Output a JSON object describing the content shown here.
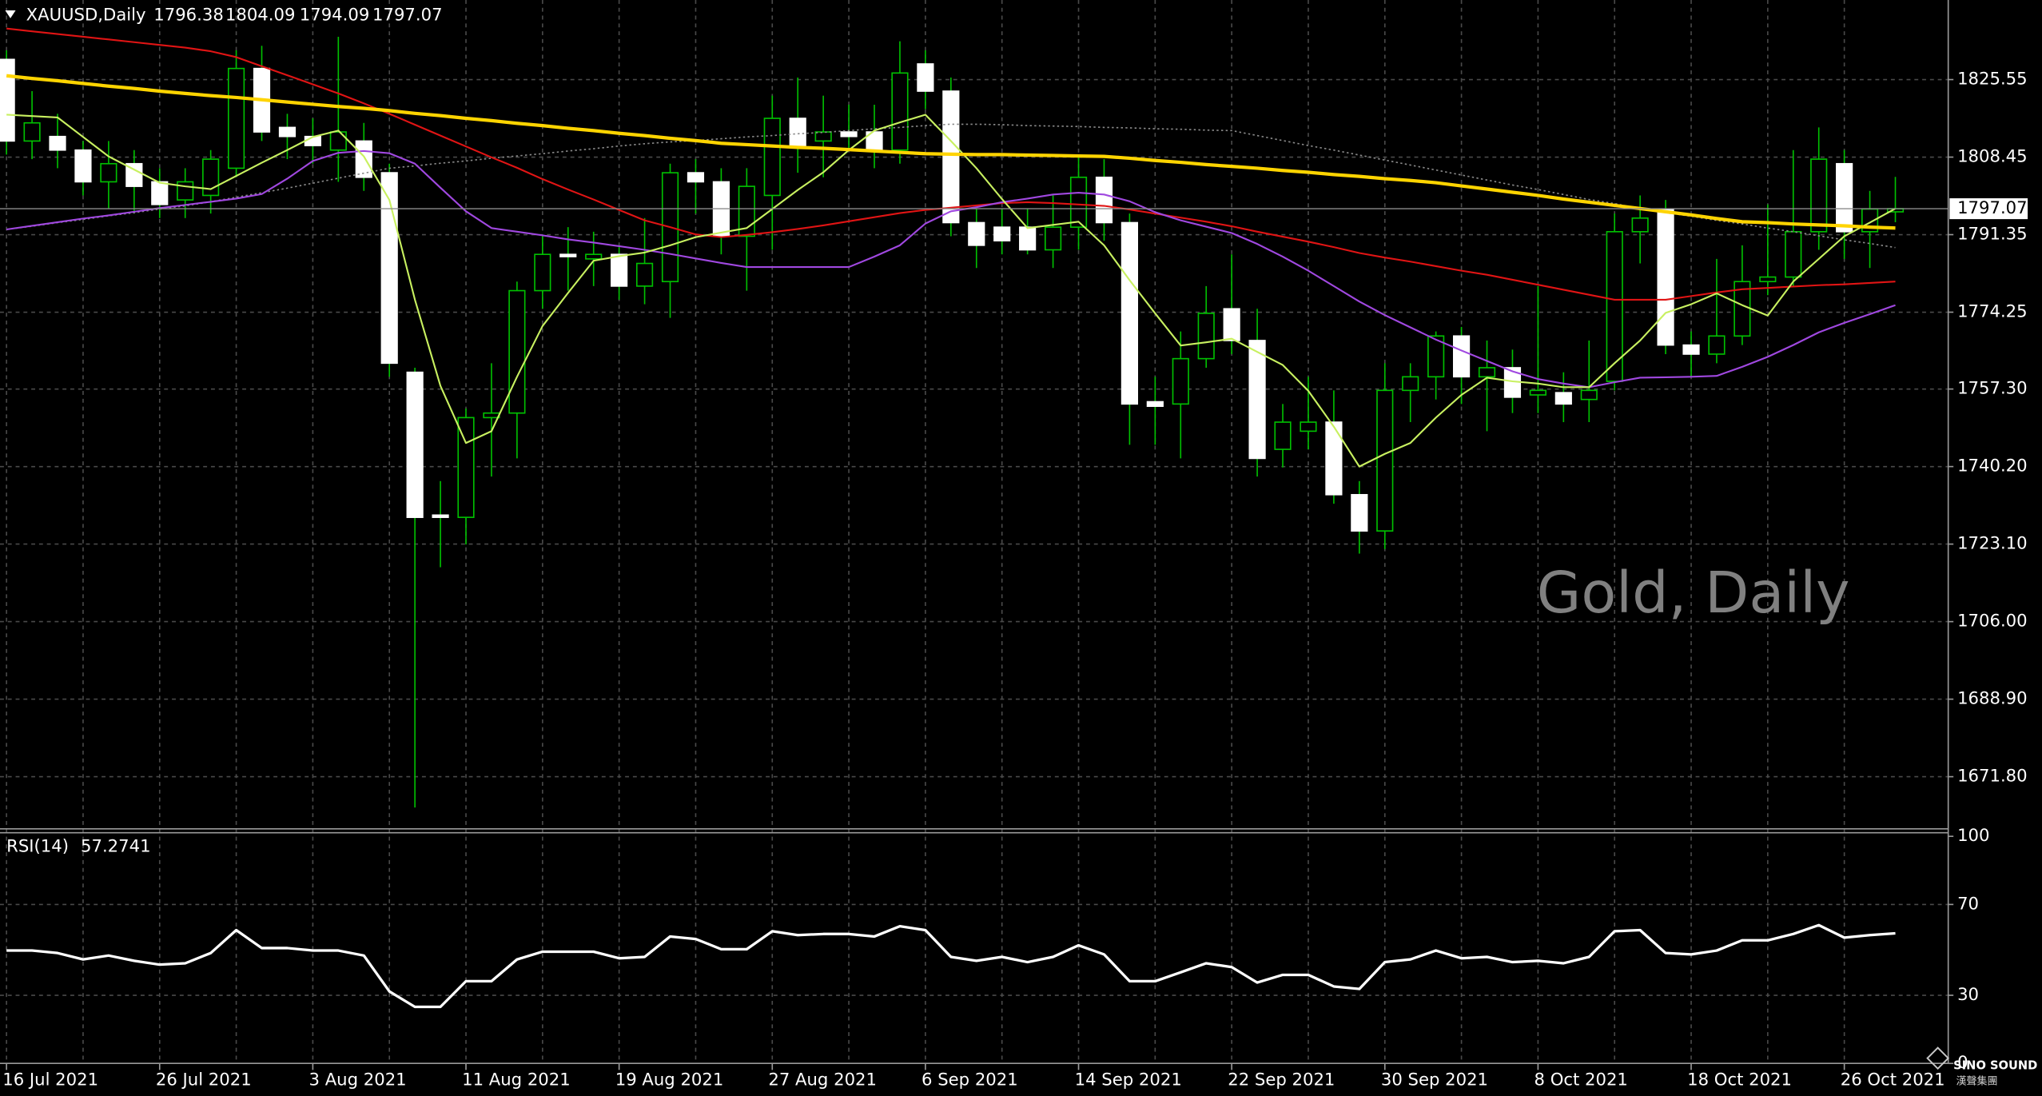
{
  "chart_data": {
    "type": "candlestick",
    "title": "XAUUSD,Daily",
    "watermark": "Gold, Daily",
    "categories": [
      "16 Jul 2021",
      null,
      null,
      null,
      null,
      null,
      "26 Jul 2021",
      null,
      null,
      null,
      null,
      null,
      "3 Aug 2021",
      null,
      null,
      null,
      null,
      null,
      "11 Aug 2021",
      null,
      null,
      null,
      null,
      null,
      "19 Aug 2021",
      null,
      null,
      null,
      null,
      null,
      "27 Aug 2021",
      null,
      null,
      null,
      null,
      null,
      "6 Sep 2021",
      null,
      null,
      null,
      null,
      null,
      "14 Sep 2021",
      null,
      null,
      null,
      null,
      null,
      "22 Sep 2021",
      null,
      null,
      null,
      null,
      null,
      "30 Sep 2021",
      null,
      null,
      null,
      null,
      null,
      "8 Oct 2021",
      null,
      null,
      null,
      null,
      null,
      "18 Oct 2021",
      null,
      null,
      null,
      null,
      null,
      "26 Oct 2021",
      null,
      null
    ],
    "open": [
      1830,
      1812,
      1813,
      1810,
      1803,
      1807,
      1803,
      1799,
      1800,
      1806,
      1828,
      1815,
      1813,
      1810,
      1812,
      1805,
      1761,
      1729.5,
      1729,
      1751,
      1752,
      1779,
      1787,
      1786,
      1787,
      1780,
      1781,
      1805,
      1803,
      1791,
      1800,
      1817,
      1812,
      1814,
      1814,
      1810,
      1829,
      1823,
      1794,
      1793,
      1793,
      1788,
      1793,
      1804,
      1794,
      1754.5,
      1754,
      1764,
      1775,
      1768,
      1744,
      1748,
      1750,
      1734,
      1726,
      1757,
      1760,
      1769,
      1760,
      1762,
      1756,
      1756.5,
      1755,
      1759,
      1792,
      1797,
      1767,
      1765,
      1769,
      1781,
      1782,
      1792,
      1807,
      1792,
      1796.38
    ],
    "high": [
      1832,
      1823,
      1818,
      1812,
      1812,
      1810,
      1806,
      1806,
      1810,
      1832,
      1833,
      1818,
      1817,
      1835,
      1816,
      1807,
      1762,
      1737,
      1753,
      1763,
      1781,
      1791,
      1793,
      1792,
      1789,
      1795,
      1807,
      1808,
      1806,
      1806,
      1822,
      1826,
      1822,
      1820,
      1820,
      1834,
      1832,
      1826,
      1797,
      1797,
      1797,
      1800,
      1809,
      1808,
      1796,
      1760,
      1770,
      1780,
      1787,
      1775,
      1754,
      1760,
      1757,
      1737,
      1763,
      1763,
      1770,
      1771,
      1768,
      1766,
      1780,
      1761,
      1768,
      1796,
      1800,
      1799,
      1770,
      1786,
      1789,
      1798,
      1810,
      1815,
      1810,
      1801,
      1804.09
    ],
    "low": [
      1809,
      1808,
      1806,
      1800,
      1797,
      1796,
      1795,
      1795,
      1796,
      1804,
      1812,
      1808,
      1807,
      1803,
      1801,
      1760,
      1665,
      1718,
      1723,
      1738,
      1742,
      1775,
      1779,
      1780,
      1777,
      1776,
      1773,
      1796,
      1787,
      1779,
      1788,
      1805,
      1804,
      1810,
      1806,
      1807,
      1819,
      1791,
      1784,
      1787,
      1787,
      1784,
      1788,
      1790,
      1745,
      1745,
      1742,
      1762,
      1765,
      1738,
      1740,
      1744,
      1732,
      1721,
      1722,
      1750,
      1755,
      1754,
      1748,
      1752,
      1752,
      1750,
      1750,
      1757,
      1785,
      1765,
      1760,
      1763,
      1767,
      1778,
      1780,
      1788,
      1786,
      1784,
      1794.09
    ],
    "close": [
      1812,
      1816,
      1810,
      1803,
      1807,
      1802,
      1798,
      1803,
      1808,
      1828,
      1814,
      1813,
      1811,
      1814,
      1804,
      1763,
      1729,
      1729,
      1751,
      1752,
      1779,
      1787,
      1786.5,
      1787,
      1780,
      1785,
      1805,
      1803,
      1791,
      1802,
      1817,
      1811,
      1814,
      1813,
      1810,
      1827,
      1823,
      1794,
      1789,
      1790,
      1788,
      1793,
      1804,
      1794,
      1754,
      1753.5,
      1764,
      1774,
      1768,
      1742,
      1750,
      1750,
      1734,
      1726,
      1757,
      1760,
      1769,
      1760,
      1762,
      1755.5,
      1757,
      1754,
      1757,
      1792,
      1795,
      1767,
      1765,
      1769,
      1781,
      1782,
      1792,
      1808,
      1792,
      1797,
      1797.07
    ],
    "up_color": "#00c000",
    "down_color": "#ffffff",
    "overlays": [
      {
        "color": "#8a8a8a",
        "style": "dotted",
        "values": [
          1792.5,
          1793.2,
          1794.0,
          1794.7,
          1795.5,
          1796.2,
          1797.0,
          1797.7,
          1798.6,
          1799.6,
          1800.6,
          1801.6,
          1802.7,
          1803.8,
          1804.9,
          1806.0,
          1806.5,
          1807.1,
          1807.6,
          1808.2,
          1808.7,
          1809.2,
          1809.8,
          1810.3,
          1810.9,
          1811.4,
          1811.8,
          1812.1,
          1812.5,
          1812.9,
          1813.2,
          1813.6,
          1813.9,
          1814.3,
          1814.7,
          1815.0,
          1815.4,
          1815.7,
          1815.7,
          1815.6,
          1815.4,
          1815.3,
          1815.2,
          1815.0,
          1814.9,
          1814.7,
          1814.6,
          1814.4,
          1814.3,
          1813.2,
          1812.1,
          1811.0,
          1810.0,
          1808.9,
          1807.8,
          1806.7,
          1805.6,
          1804.5,
          1803.4,
          1802.3,
          1801.3,
          1800.2,
          1799.1,
          1798.2,
          1797.1,
          1796.2,
          1795.4,
          1794.5,
          1793.7,
          1792.8,
          1792.0,
          1791.1,
          1790.2,
          1789.4,
          1788.5
        ]
      },
      {
        "color": "#e01414",
        "style": "solid",
        "values": [
          1836.8,
          1836.2,
          1835.6,
          1835.0,
          1834.4,
          1833.8,
          1833.2,
          1832.6,
          1831.8,
          1830.5,
          1828.5,
          1826.5,
          1824.5,
          1822.5,
          1820.3,
          1818.0,
          1815.6,
          1813.2,
          1810.8,
          1808.4,
          1806.1,
          1803.6,
          1801.3,
          1799.1,
          1796.8,
          1794.5,
          1793.0,
          1791.4,
          1790.8,
          1791.3,
          1791.9,
          1792.6,
          1793.4,
          1794.3,
          1795.2,
          1796.1,
          1796.8,
          1797.3,
          1797.8,
          1798.3,
          1798.5,
          1798.3,
          1798.0,
          1797.7,
          1796.9,
          1796.0,
          1795.1,
          1794.2,
          1793.2,
          1792.0,
          1790.9,
          1789.8,
          1788.6,
          1787.3,
          1786.3,
          1785.4,
          1784.4,
          1783.4,
          1782.5,
          1781.4,
          1780.3,
          1779.2,
          1778.1,
          1777.0,
          1777.0,
          1777.0,
          1777.8,
          1778.6,
          1779.3,
          1779.6,
          1779.9,
          1780.2,
          1780.4,
          1780.7,
          1781.0
        ]
      },
      {
        "color": "#a048e0",
        "style": "solid",
        "values": [
          1792.5,
          1793.3,
          1794.1,
          1794.9,
          1795.6,
          1796.4,
          1797.2,
          1797.9,
          1798.6,
          1799.3,
          1800.3,
          1803.7,
          1807.6,
          1809.4,
          1809.8,
          1809.3,
          1807.0,
          1801.7,
          1796.5,
          1792.8,
          1792.0,
          1791.2,
          1790.3,
          1789.6,
          1788.8,
          1788.0,
          1787.1,
          1786.1,
          1785.1,
          1784.2,
          1784.2,
          1784.2,
          1784.2,
          1784.2,
          1786.5,
          1789.0,
          1793.8,
          1796.5,
          1797.4,
          1798.5,
          1799.3,
          1800.2,
          1800.6,
          1800.2,
          1798.7,
          1796.3,
          1794.5,
          1793.1,
          1791.7,
          1789.3,
          1786.5,
          1783.4,
          1780.0,
          1776.6,
          1773.6,
          1770.9,
          1768.2,
          1765.8,
          1763.5,
          1761.2,
          1759.5,
          1758.5,
          1757.7,
          1758.8,
          1759.8,
          1759.9,
          1760.0,
          1760.2,
          1762.2,
          1764.4,
          1767.0,
          1769.8,
          1771.9,
          1773.8,
          1775.8
        ]
      },
      {
        "color": "#c8f060",
        "style": "solid",
        "values": [
          1817.8,
          1817.5,
          1817.2,
          1812.9,
          1808.6,
          1805.7,
          1802.8,
          1802.0,
          1801.4,
          1804.3,
          1807.2,
          1810.0,
          1812.9,
          1814.3,
          1808.6,
          1799.0,
          1777.0,
          1758.0,
          1745.4,
          1748.0,
          1760.0,
          1771.2,
          1778.5,
          1785.6,
          1786.6,
          1787.4,
          1789.0,
          1790.8,
          1791.8,
          1792.8,
          1797.0,
          1801.2,
          1805.1,
          1810.0,
          1814.3,
          1816.1,
          1817.8,
          1812.0,
          1806.0,
          1799.2,
          1792.8,
          1793.5,
          1794.2,
          1789.0,
          1781.3,
          1774.0,
          1766.9,
          1767.6,
          1768.4,
          1765.5,
          1762.6,
          1756.9,
          1749.0,
          1740.2,
          1743.0,
          1745.4,
          1751.0,
          1756.0,
          1759.8,
          1759.0,
          1758.5,
          1757.7,
          1757.7,
          1763.0,
          1768.0,
          1774.1,
          1776.0,
          1778.4,
          1775.8,
          1773.5,
          1781.0,
          1786.0,
          1791.0,
          1794.0,
          1797.1
        ]
      },
      {
        "color": "#ffd400",
        "style": "thick",
        "values": [
          1826.4,
          1825.8,
          1825.3,
          1824.7,
          1824.1,
          1823.6,
          1823.0,
          1822.5,
          1822.0,
          1821.6,
          1821.1,
          1820.6,
          1820.1,
          1819.6,
          1819.2,
          1818.7,
          1818.1,
          1817.6,
          1817.0,
          1816.5,
          1815.9,
          1815.4,
          1814.8,
          1814.3,
          1813.7,
          1813.2,
          1812.6,
          1812.1,
          1811.5,
          1811.2,
          1810.9,
          1810.6,
          1810.4,
          1810.1,
          1809.8,
          1809.5,
          1809.2,
          1809.1,
          1809.0,
          1809.0,
          1808.9,
          1808.8,
          1808.7,
          1808.6,
          1808.2,
          1807.7,
          1807.3,
          1806.8,
          1806.4,
          1806.0,
          1805.5,
          1805.1,
          1804.6,
          1804.2,
          1803.7,
          1803.3,
          1802.8,
          1802.1,
          1801.4,
          1800.7,
          1800.0,
          1799.2,
          1798.5,
          1797.8,
          1797.1,
          1796.4,
          1795.7,
          1794.9,
          1794.2,
          1794.0,
          1793.7,
          1793.5,
          1793.3,
          1793.0,
          1792.8
        ]
      }
    ],
    "ylim": [
      1660.3,
      1843.1
    ],
    "yticks": [
      1825.55,
      1808.45,
      1791.35,
      1774.25,
      {
        "value": 1757.3,
        "label": "1757.30"
      },
      {
        "value": 1740.2,
        "label": "1740.20"
      },
      {
        "value": 1723.1,
        "label": "1723.10"
      },
      {
        "value": 1706,
        "label": "1706.00"
      },
      {
        "value": 1688.9,
        "label": "1688.90"
      },
      {
        "value": 1671.8,
        "label": "1671.80"
      }
    ],
    "grid": true,
    "indicator": {
      "type": "line",
      "title": "RSI(14)",
      "color": "#ffffff",
      "values": [
        49.7,
        49.7,
        48.6,
        45.8,
        47.5,
        45.2,
        43.5,
        44.1,
        48.6,
        58.7,
        50.8,
        50.8,
        49.7,
        49.7,
        47.5,
        31.7,
        24.9,
        24.9,
        36.2,
        36.2,
        45.8,
        49.2,
        49.2,
        49.2,
        46.3,
        46.9,
        55.9,
        54.8,
        50.3,
        50.3,
        58.2,
        56.5,
        57.0,
        57.0,
        55.9,
        60.4,
        58.7,
        46.9,
        45.2,
        46.9,
        44.6,
        46.9,
        52.0,
        48.0,
        36.2,
        36.2,
        40.1,
        44.1,
        42.4,
        35.6,
        39.0,
        39.0,
        33.9,
        32.8,
        44.6,
        45.8,
        49.7,
        46.3,
        46.9,
        44.6,
        45.2,
        44.1,
        46.9,
        58.2,
        58.7,
        48.6,
        48.0,
        49.7,
        54.2,
        54.2,
        57.0,
        60.9,
        55.4,
        56.5,
        57.2741
      ],
      "ylim": [
        0,
        101
      ],
      "yticks": [
        100,
        70,
        30,
        0
      ]
    }
  },
  "logo": {
    "name": "SINO SOUND",
    "subtitle": "漢聲集團"
  }
}
